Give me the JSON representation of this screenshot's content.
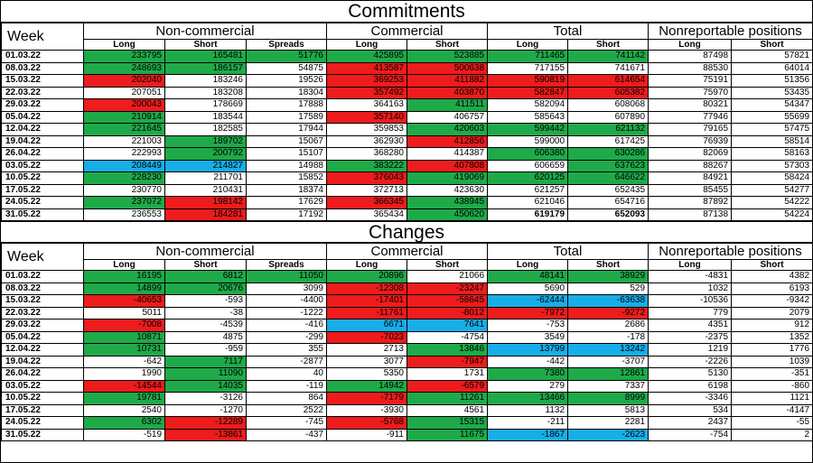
{
  "commitments": {
    "title": "Commitments",
    "headers": {
      "week": "Week",
      "groups": [
        "Non-commercial",
        "Commercial",
        "Total",
        "Nonreportable positions"
      ],
      "sub": [
        "Long",
        "Short",
        "Spreads",
        "Long",
        "Short",
        "Long",
        "Short",
        "Long",
        "Short"
      ]
    },
    "rows": [
      {
        "date": "01.03.22",
        "cells": [
          [
            "233795",
            "g"
          ],
          [
            "165481",
            "g"
          ],
          [
            "51776",
            "g"
          ],
          [
            "425895",
            "g"
          ],
          [
            "523885",
            "g"
          ],
          [
            "711465",
            "g"
          ],
          [
            "741142",
            "g"
          ],
          [
            "87498",
            ""
          ],
          [
            "57821",
            ""
          ]
        ]
      },
      {
        "date": "08.03.22",
        "cells": [
          [
            "248693",
            "g"
          ],
          [
            "186157",
            "g"
          ],
          [
            "54875",
            ""
          ],
          [
            "413587",
            "r"
          ],
          [
            "500638",
            "r"
          ],
          [
            "717155",
            ""
          ],
          [
            "741671",
            ""
          ],
          [
            "88530",
            ""
          ],
          [
            "64014",
            ""
          ]
        ]
      },
      {
        "date": "15.03.22",
        "cells": [
          [
            "202040",
            "r"
          ],
          [
            "183246",
            ""
          ],
          [
            "19526",
            ""
          ],
          [
            "369253",
            "r"
          ],
          [
            "411882",
            "r"
          ],
          [
            "590819",
            "r"
          ],
          [
            "614654",
            "r"
          ],
          [
            "75191",
            ""
          ],
          [
            "51356",
            ""
          ]
        ]
      },
      {
        "date": "22.03.22",
        "cells": [
          [
            "207051",
            ""
          ],
          [
            "183208",
            ""
          ],
          [
            "18304",
            ""
          ],
          [
            "357492",
            "r"
          ],
          [
            "403870",
            "r"
          ],
          [
            "582847",
            "r"
          ],
          [
            "605382",
            "r"
          ],
          [
            "75970",
            ""
          ],
          [
            "53435",
            ""
          ]
        ]
      },
      {
        "date": "29.03.22",
        "cells": [
          [
            "200043",
            "r"
          ],
          [
            "178669",
            ""
          ],
          [
            "17888",
            ""
          ],
          [
            "364163",
            ""
          ],
          [
            "411511",
            "g"
          ],
          [
            "582094",
            ""
          ],
          [
            "608068",
            ""
          ],
          [
            "80321",
            ""
          ],
          [
            "54347",
            ""
          ]
        ]
      },
      {
        "date": "05.04.22",
        "cells": [
          [
            "210914",
            "g"
          ],
          [
            "183544",
            ""
          ],
          [
            "17589",
            ""
          ],
          [
            "357140",
            "r"
          ],
          [
            "406757",
            ""
          ],
          [
            "585643",
            ""
          ],
          [
            "607890",
            ""
          ],
          [
            "77946",
            ""
          ],
          [
            "55699",
            ""
          ]
        ]
      },
      {
        "date": "12.04.22",
        "cells": [
          [
            "221645",
            "g"
          ],
          [
            "182585",
            ""
          ],
          [
            "17944",
            ""
          ],
          [
            "359853",
            ""
          ],
          [
            "420603",
            "g"
          ],
          [
            "599442",
            "g"
          ],
          [
            "621132",
            "g"
          ],
          [
            "79165",
            ""
          ],
          [
            "57475",
            ""
          ]
        ]
      },
      {
        "date": "19.04.22",
        "cells": [
          [
            "221003",
            ""
          ],
          [
            "189702",
            "g"
          ],
          [
            "15067",
            ""
          ],
          [
            "362930",
            ""
          ],
          [
            "412856",
            "r"
          ],
          [
            "599000",
            ""
          ],
          [
            "617425",
            ""
          ],
          [
            "76939",
            ""
          ],
          [
            "58514",
            ""
          ]
        ]
      },
      {
        "date": "26.04.22",
        "cells": [
          [
            "222993",
            ""
          ],
          [
            "200792",
            "g"
          ],
          [
            "15107",
            ""
          ],
          [
            "368280",
            ""
          ],
          [
            "414387",
            ""
          ],
          [
            "606380",
            "g"
          ],
          [
            "630286",
            "g"
          ],
          [
            "82069",
            ""
          ],
          [
            "58163",
            ""
          ]
        ]
      },
      {
        "date": "03.05.22",
        "cells": [
          [
            "208449",
            "b"
          ],
          [
            "214827",
            "b"
          ],
          [
            "14988",
            ""
          ],
          [
            "383222",
            "g"
          ],
          [
            "407808",
            "r"
          ],
          [
            "606659",
            ""
          ],
          [
            "637623",
            "g"
          ],
          [
            "88267",
            ""
          ],
          [
            "57303",
            ""
          ]
        ]
      },
      {
        "date": "10.05.22",
        "cells": [
          [
            "228230",
            "g"
          ],
          [
            "211701",
            ""
          ],
          [
            "15852",
            ""
          ],
          [
            "376043",
            "r"
          ],
          [
            "419069",
            "g"
          ],
          [
            "620125",
            "g"
          ],
          [
            "646622",
            "g"
          ],
          [
            "84921",
            ""
          ],
          [
            "58424",
            ""
          ]
        ]
      },
      {
        "date": "17.05.22",
        "cells": [
          [
            "230770",
            ""
          ],
          [
            "210431",
            ""
          ],
          [
            "18374",
            ""
          ],
          [
            "372713",
            ""
          ],
          [
            "423630",
            ""
          ],
          [
            "621257",
            ""
          ],
          [
            "652435",
            ""
          ],
          [
            "85455",
            ""
          ],
          [
            "54277",
            ""
          ]
        ]
      },
      {
        "date": "24.05.22",
        "cells": [
          [
            "237072",
            "g"
          ],
          [
            "198142",
            "r"
          ],
          [
            "17629",
            ""
          ],
          [
            "366345",
            "r"
          ],
          [
            "438945",
            "g"
          ],
          [
            "621046",
            ""
          ],
          [
            "654716",
            ""
          ],
          [
            "87892",
            ""
          ],
          [
            "54222",
            ""
          ]
        ]
      },
      {
        "date": "31.05.22",
        "cells": [
          [
            "236553",
            ""
          ],
          [
            "184281",
            "r"
          ],
          [
            "17192",
            ""
          ],
          [
            "365434",
            ""
          ],
          [
            "450620",
            "g"
          ],
          [
            "619179",
            "bold"
          ],
          [
            "652093",
            "bold"
          ],
          [
            "87138",
            ""
          ],
          [
            "54224",
            ""
          ]
        ]
      }
    ]
  },
  "changes": {
    "title": "Changes",
    "headers": {
      "week": "Week",
      "groups": [
        "Non-commercial",
        "Commercial",
        "Total",
        "Nonreportable positions"
      ],
      "sub": [
        "Long",
        "Short",
        "Spreads",
        "Long",
        "Short",
        "Long",
        "Short",
        "Long",
        "Short"
      ]
    },
    "rows": [
      {
        "date": "01.03.22",
        "cells": [
          [
            "16195",
            "g"
          ],
          [
            "6812",
            "g"
          ],
          [
            "11050",
            "g"
          ],
          [
            "20896",
            "g"
          ],
          [
            "21066",
            ""
          ],
          [
            "48141",
            "g"
          ],
          [
            "38929",
            "g"
          ],
          [
            "-4831",
            ""
          ],
          [
            "4382",
            ""
          ]
        ]
      },
      {
        "date": "08.03.22",
        "cells": [
          [
            "14899",
            "g"
          ],
          [
            "20676",
            "g"
          ],
          [
            "3099",
            ""
          ],
          [
            "-12308",
            "r"
          ],
          [
            "-23247",
            "r"
          ],
          [
            "5690",
            ""
          ],
          [
            "529",
            ""
          ],
          [
            "1032",
            ""
          ],
          [
            "6193",
            ""
          ]
        ]
      },
      {
        "date": "15.03.22",
        "cells": [
          [
            "-40653",
            "r"
          ],
          [
            "-593",
            ""
          ],
          [
            "-4400",
            ""
          ],
          [
            "-17401",
            "r"
          ],
          [
            "-58645",
            "r"
          ],
          [
            "-62444",
            "b"
          ],
          [
            "-63638",
            "b"
          ],
          [
            "-10536",
            ""
          ],
          [
            "-9342",
            ""
          ]
        ]
      },
      {
        "date": "22.03.22",
        "cells": [
          [
            "5011",
            ""
          ],
          [
            "-38",
            ""
          ],
          [
            "-1222",
            ""
          ],
          [
            "-11761",
            "r"
          ],
          [
            "-8012",
            "r"
          ],
          [
            "-7972",
            "r"
          ],
          [
            "-9272",
            "r"
          ],
          [
            "779",
            ""
          ],
          [
            "2079",
            ""
          ]
        ]
      },
      {
        "date": "29.03.22",
        "cells": [
          [
            "-7008",
            "r"
          ],
          [
            "-4539",
            ""
          ],
          [
            "-416",
            ""
          ],
          [
            "6671",
            "b"
          ],
          [
            "7641",
            "b"
          ],
          [
            "-753",
            ""
          ],
          [
            "2686",
            ""
          ],
          [
            "4351",
            ""
          ],
          [
            "912",
            ""
          ]
        ]
      },
      {
        "date": "05.04.22",
        "cells": [
          [
            "10871",
            "g"
          ],
          [
            "4875",
            ""
          ],
          [
            "-299",
            ""
          ],
          [
            "-7023",
            "r"
          ],
          [
            "-4754",
            ""
          ],
          [
            "3549",
            ""
          ],
          [
            "-178",
            ""
          ],
          [
            "-2375",
            ""
          ],
          [
            "1352",
            ""
          ]
        ]
      },
      {
        "date": "12.04.22",
        "cells": [
          [
            "10731",
            "g"
          ],
          [
            "-959",
            ""
          ],
          [
            "355",
            ""
          ],
          [
            "2713",
            ""
          ],
          [
            "13846",
            "g"
          ],
          [
            "13799",
            "b"
          ],
          [
            "13242",
            "b"
          ],
          [
            "1219",
            ""
          ],
          [
            "1776",
            ""
          ]
        ]
      },
      {
        "date": "19.04.22",
        "cells": [
          [
            "-642",
            ""
          ],
          [
            "7117",
            "g"
          ],
          [
            "-2877",
            ""
          ],
          [
            "3077",
            ""
          ],
          [
            "-7947",
            "r"
          ],
          [
            "-442",
            ""
          ],
          [
            "-3707",
            ""
          ],
          [
            "-2226",
            ""
          ],
          [
            "1039",
            ""
          ]
        ]
      },
      {
        "date": "26.04.22",
        "cells": [
          [
            "1990",
            ""
          ],
          [
            "11090",
            "g"
          ],
          [
            "40",
            ""
          ],
          [
            "5350",
            ""
          ],
          [
            "1731",
            ""
          ],
          [
            "7380",
            "g"
          ],
          [
            "12861",
            "g"
          ],
          [
            "5130",
            ""
          ],
          [
            "-351",
            ""
          ]
        ]
      },
      {
        "date": "03.05.22",
        "cells": [
          [
            "-14544",
            "r"
          ],
          [
            "14035",
            "g"
          ],
          [
            "-119",
            ""
          ],
          [
            "14942",
            "g"
          ],
          [
            "-6579",
            "r"
          ],
          [
            "279",
            ""
          ],
          [
            "7337",
            ""
          ],
          [
            "6198",
            ""
          ],
          [
            "-860",
            ""
          ]
        ]
      },
      {
        "date": "10.05.22",
        "cells": [
          [
            "19781",
            "g"
          ],
          [
            "-3126",
            ""
          ],
          [
            "864",
            ""
          ],
          [
            "-7179",
            "r"
          ],
          [
            "11261",
            "g"
          ],
          [
            "13466",
            "g"
          ],
          [
            "8999",
            "g"
          ],
          [
            "-3346",
            ""
          ],
          [
            "1121",
            ""
          ]
        ]
      },
      {
        "date": "17.05.22",
        "cells": [
          [
            "2540",
            ""
          ],
          [
            "-1270",
            ""
          ],
          [
            "2522",
            ""
          ],
          [
            "-3930",
            ""
          ],
          [
            "4561",
            ""
          ],
          [
            "1132",
            ""
          ],
          [
            "5813",
            ""
          ],
          [
            "534",
            ""
          ],
          [
            "-4147",
            ""
          ]
        ]
      },
      {
        "date": "24.05.22",
        "cells": [
          [
            "6302",
            "g"
          ],
          [
            "-12289",
            "r"
          ],
          [
            "-745",
            ""
          ],
          [
            "-5768",
            "r"
          ],
          [
            "15315",
            "g"
          ],
          [
            "-211",
            ""
          ],
          [
            "2281",
            ""
          ],
          [
            "2437",
            ""
          ],
          [
            "-55",
            ""
          ]
        ]
      },
      {
        "date": "31.05.22",
        "cells": [
          [
            "-519",
            ""
          ],
          [
            "-13861",
            "r"
          ],
          [
            "-437",
            ""
          ],
          [
            "-911",
            ""
          ],
          [
            "11675",
            "g"
          ],
          [
            "-1867",
            "b"
          ],
          [
            "-2623",
            "b"
          ],
          [
            "-754",
            ""
          ],
          [
            "2",
            ""
          ]
        ]
      }
    ]
  },
  "colors": {
    "green": "#1faa4a",
    "red": "#ee1c1c",
    "blue": "#17aee8"
  }
}
